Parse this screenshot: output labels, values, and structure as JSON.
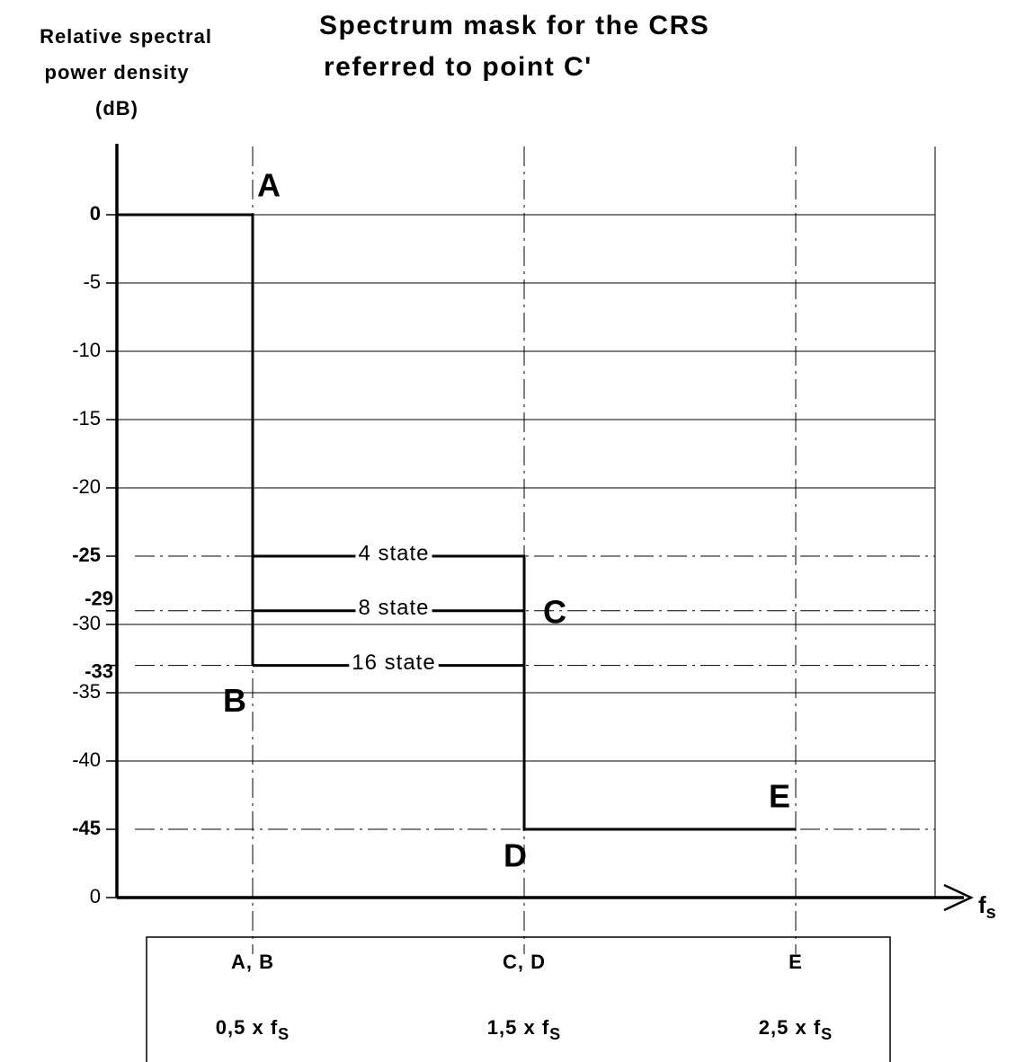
{
  "chart_data": {
    "type": "step",
    "title": [
      "Spectrum mask for the CRS",
      "referred to point C'"
    ],
    "ylabel": [
      "Relative spectral",
      "power density",
      "(dB)"
    ],
    "xlabel": {
      "main": "f",
      "sub": "s"
    },
    "xlim": [
      0,
      3
    ],
    "ylim": [
      -50,
      5
    ],
    "xticks": [
      0.5,
      1.5,
      2.5
    ],
    "yticks": [
      0,
      -5,
      -10,
      -15,
      -20,
      -30,
      -35,
      -40,
      {
        "value": -50,
        "label": "0"
      }
    ],
    "reference_levels": [
      -25,
      -29,
      -33,
      -45
    ],
    "grid": true,
    "color": "#000000",
    "series": [
      {
        "x": [
          0,
          0.5,
          0.5
        ],
        "values": [
          0,
          0,
          -33
        ]
      },
      {
        "name": "4 state",
        "x": [
          0.5,
          1.5,
          1.5,
          2.5
        ],
        "values": [
          -25,
          -25,
          -45,
          -45
        ]
      },
      {
        "name": "8 state",
        "x": [
          0.5,
          1.5
        ],
        "values": [
          -29,
          -29
        ]
      },
      {
        "name": "16 state",
        "x": [
          0.5,
          1.5
        ],
        "values": [
          -33,
          -33
        ]
      }
    ],
    "points": [
      {
        "label": "A",
        "x": 0.5,
        "y": 0
      },
      {
        "label": "B",
        "x": 0.5,
        "y": -33
      },
      {
        "label": "C",
        "x": 1.5,
        "y": -29
      },
      {
        "label": "D",
        "x": 1.5,
        "y": -45
      },
      {
        "label": "E",
        "x": 2.5,
        "y": -45
      }
    ],
    "table": {
      "rows": [
        [
          {
            "main": "A, B"
          },
          {
            "main": "C, D"
          },
          {
            "main": "E"
          }
        ],
        [
          {
            "main": "0,5 x f",
            "sub": "S"
          },
          {
            "main": "1,5 x f",
            "sub": "S"
          },
          {
            "main": "2,5 x f",
            "sub": "S"
          }
        ]
      ]
    }
  }
}
